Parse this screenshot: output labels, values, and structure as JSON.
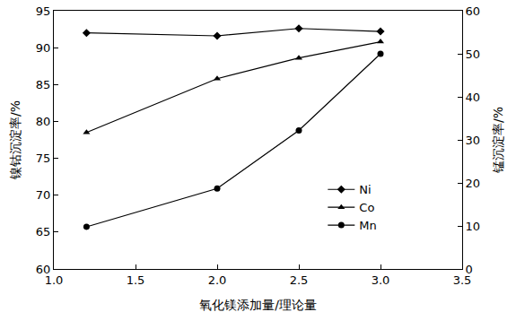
{
  "chart_data": {
    "type": "line",
    "x_label": "氧化镁添加量/理论量",
    "y_label": "镍钴沉淀率/%",
    "y2_label": "锰沉淀率/%",
    "xlim": [
      1.0,
      3.5
    ],
    "xticks": [
      {
        "value": 1.0,
        "label": "1.0"
      },
      {
        "value": 1.5,
        "label": "1.5"
      },
      {
        "value": 2.0,
        "label": "2.0"
      },
      {
        "value": 2.5,
        "label": "2.5"
      },
      {
        "value": 3.0,
        "label": "3.0"
      },
      {
        "value": 3.5,
        "label": "3.5"
      }
    ],
    "ylim": [
      60,
      95
    ],
    "yticks": [
      60,
      65,
      70,
      75,
      80,
      85,
      90,
      95
    ],
    "y2lim": [
      0,
      60
    ],
    "y2ticks": [
      0,
      10,
      20,
      30,
      40,
      50,
      60
    ],
    "grid": false,
    "legend": "lower right",
    "x": [
      1.2,
      2.0,
      2.5,
      3.0
    ],
    "series": [
      {
        "name": "Ni",
        "color": "#000000",
        "marker": "diamond",
        "line_style": "solid",
        "values": [
          92.0,
          91.6,
          92.6,
          92.2
        ]
      },
      {
        "name": "Co",
        "color": "#000000",
        "marker": "triangle-up",
        "line_style": "solid",
        "values": [
          78.5,
          85.8,
          88.6,
          90.8
        ]
      },
      {
        "name": "Mn",
        "color": "#000000",
        "marker": "circle",
        "line_style": "solid",
        "axis": "y2",
        "values": [
          9.8,
          18.7,
          32.2,
          50.0
        ]
      }
    ]
  }
}
